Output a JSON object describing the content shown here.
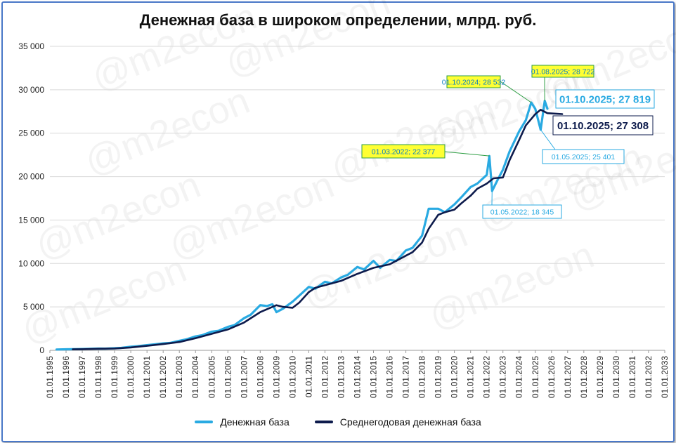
{
  "colors": {
    "series_base": "#29aae2",
    "series_avg": "#0d1b4c",
    "label_yellow": "#ffff33",
    "label_yellow_border": "#2e9e44",
    "grid": "#d9d9d9"
  },
  "watermark": "@m2econ",
  "chart_data": {
    "type": "line",
    "title": "Денежная база в широком определении, млрд. руб.",
    "xlabel": "",
    "ylabel": "",
    "ylim": [
      0,
      35000
    ],
    "xlim": [
      "1995-01-01",
      "2033-01-01"
    ],
    "y_ticks": [
      "0",
      "5 000",
      "10 000",
      "15 000",
      "20 000",
      "25 000",
      "30 000",
      "35 000"
    ],
    "x_ticks": [
      "01.01.1995",
      "01.01.1996",
      "01.01.1997",
      "01.01.1998",
      "01.01.1999",
      "01.01.2000",
      "01.01.2001",
      "01.01.2002",
      "01.01.2003",
      "01.01.2004",
      "01.01.2005",
      "01.01.2006",
      "01.01.2007",
      "01.01.2008",
      "01.01.2009",
      "01.01.2010",
      "01.01.2011",
      "01.01.2012",
      "01.01.2013",
      "01.01.2014",
      "01.01.2015",
      "01.01.2016",
      "01.01.2017",
      "01.01.2018",
      "01.01.2019",
      "01.01.2020",
      "01.01.2021",
      "01.01.2022",
      "01.01.2023",
      "01.01.2024",
      "01.01.2025",
      "01.01.2026",
      "01.01.2027",
      "01.01.2028",
      "01.01.2029",
      "01.01.2030",
      "01.01.2031",
      "01.01.2032",
      "01.01.2033"
    ],
    "grid": true,
    "legend_position": "bottom",
    "series": [
      {
        "name": "Денежная база",
        "points": [
          [
            "1995-06-01",
            100
          ],
          [
            "1996-01-01",
            120
          ],
          [
            "1996-06-01",
            130
          ],
          [
            "1997-01-01",
            150
          ],
          [
            "1997-06-01",
            180
          ],
          [
            "1998-01-01",
            200
          ],
          [
            "1998-06-01",
            190
          ],
          [
            "1999-01-01",
            240
          ],
          [
            "1999-06-01",
            280
          ],
          [
            "2000-01-01",
            420
          ],
          [
            "2000-06-01",
            480
          ],
          [
            "2001-01-01",
            600
          ],
          [
            "2001-06-01",
            680
          ],
          [
            "2002-01-01",
            800
          ],
          [
            "2002-06-01",
            850
          ],
          [
            "2003-01-01",
            1100
          ],
          [
            "2003-06-01",
            1250
          ],
          [
            "2004-01-01",
            1600
          ],
          [
            "2004-06-01",
            1750
          ],
          [
            "2005-01-01",
            2150
          ],
          [
            "2005-06-01",
            2250
          ],
          [
            "2006-01-01",
            2700
          ],
          [
            "2006-06-01",
            2900
          ],
          [
            "2007-01-01",
            3700
          ],
          [
            "2007-06-01",
            4100
          ],
          [
            "2008-01-01",
            5200
          ],
          [
            "2008-06-01",
            5100
          ],
          [
            "2008-10-01",
            5300
          ],
          [
            "2009-01-01",
            4400
          ],
          [
            "2009-06-01",
            4800
          ],
          [
            "2010-01-01",
            5600
          ],
          [
            "2010-06-01",
            6300
          ],
          [
            "2011-01-01",
            7300
          ],
          [
            "2011-06-01",
            7100
          ],
          [
            "2012-01-01",
            7900
          ],
          [
            "2012-06-01",
            7700
          ],
          [
            "2013-01-01",
            8400
          ],
          [
            "2013-06-01",
            8700
          ],
          [
            "2014-01-01",
            9600
          ],
          [
            "2014-06-01",
            9300
          ],
          [
            "2015-01-01",
            10300
          ],
          [
            "2015-06-01",
            9500
          ],
          [
            "2016-01-01",
            10400
          ],
          [
            "2016-06-01",
            10300
          ],
          [
            "2017-01-01",
            11500
          ],
          [
            "2017-06-01",
            11800
          ],
          [
            "2018-01-01",
            13200
          ],
          [
            "2018-06-01",
            16300
          ],
          [
            "2019-01-01",
            16300
          ],
          [
            "2019-06-01",
            15900
          ],
          [
            "2020-01-01",
            16800
          ],
          [
            "2020-06-01",
            17600
          ],
          [
            "2021-01-01",
            18800
          ],
          [
            "2021-06-01",
            19200
          ],
          [
            "2022-01-01",
            20200
          ],
          [
            "2022-03-01",
            22377
          ],
          [
            "2022-05-01",
            18345
          ],
          [
            "2022-09-01",
            19600
          ],
          [
            "2023-01-01",
            20800
          ],
          [
            "2023-06-01",
            22900
          ],
          [
            "2024-01-01",
            25200
          ],
          [
            "2024-06-01",
            26500
          ],
          [
            "2024-10-01",
            28532
          ],
          [
            "2025-01-01",
            27800
          ],
          [
            "2025-05-01",
            25401
          ],
          [
            "2025-08-01",
            28722
          ],
          [
            "2025-10-01",
            27819
          ]
        ]
      },
      {
        "name": "Среднегодовая денежная база",
        "points": [
          [
            "1996-06-01",
            110
          ],
          [
            "1997-01-01",
            130
          ],
          [
            "1998-01-01",
            180
          ],
          [
            "1999-01-01",
            210
          ],
          [
            "2000-01-01",
            330
          ],
          [
            "2001-01-01",
            520
          ],
          [
            "2002-01-01",
            720
          ],
          [
            "2003-01-01",
            950
          ],
          [
            "2004-01-01",
            1400
          ],
          [
            "2005-01-01",
            1900
          ],
          [
            "2006-01-01",
            2400
          ],
          [
            "2007-01-01",
            3200
          ],
          [
            "2008-01-01",
            4400
          ],
          [
            "2009-01-01",
            5200
          ],
          [
            "2009-06-01",
            5000
          ],
          [
            "2010-01-01",
            4900
          ],
          [
            "2010-06-01",
            5500
          ],
          [
            "2011-01-01",
            6700
          ],
          [
            "2011-06-01",
            7200
          ],
          [
            "2012-01-01",
            7500
          ],
          [
            "2013-01-01",
            8000
          ],
          [
            "2014-01-01",
            8800
          ],
          [
            "2015-01-01",
            9500
          ],
          [
            "2016-01-01",
            9900
          ],
          [
            "2017-01-01",
            10900
          ],
          [
            "2017-06-01",
            11300
          ],
          [
            "2018-01-01",
            12400
          ],
          [
            "2018-06-01",
            14000
          ],
          [
            "2019-01-01",
            15600
          ],
          [
            "2019-06-01",
            15900
          ],
          [
            "2020-01-01",
            16200
          ],
          [
            "2020-06-01",
            16900
          ],
          [
            "2021-01-01",
            17800
          ],
          [
            "2021-06-01",
            18600
          ],
          [
            "2022-01-01",
            19200
          ],
          [
            "2022-06-01",
            19800
          ],
          [
            "2023-01-01",
            19900
          ],
          [
            "2023-06-01",
            21900
          ],
          [
            "2024-01-01",
            24200
          ],
          [
            "2024-06-01",
            25900
          ],
          [
            "2025-01-01",
            27200
          ],
          [
            "2025-05-01",
            27700
          ],
          [
            "2025-10-01",
            27308
          ],
          [
            "2026-09-01",
            27200
          ]
        ]
      }
    ],
    "annotations": [
      {
        "text": "01.10.2024;  28 532",
        "style": "yellow"
      },
      {
        "text": "01.08.2025;  28 722",
        "style": "yellow"
      },
      {
        "text": "01.03.2022;  22 377",
        "style": "yellow"
      },
      {
        "text": "01.05.2022;  18 345",
        "style": "white"
      },
      {
        "text": "01.05.2025;  25 401",
        "style": "white"
      },
      {
        "text": "01.10.2025;  27 819",
        "style": "big-light"
      },
      {
        "text": "01.10.2025;  27 308",
        "style": "big-dark"
      }
    ]
  }
}
